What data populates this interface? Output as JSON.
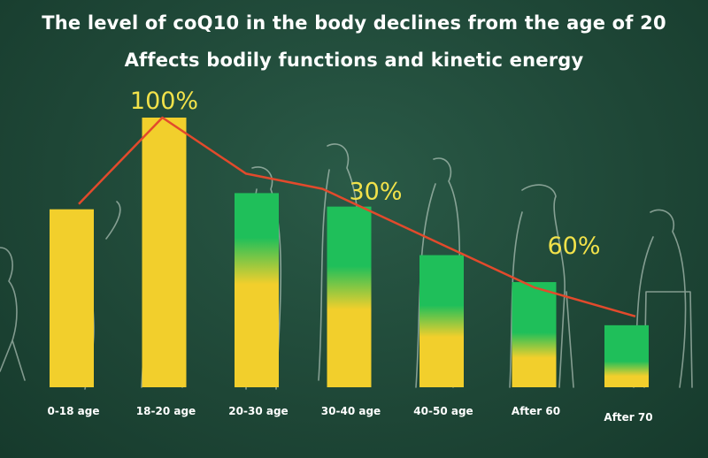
{
  "header": {
    "title_line1": "The level of coQ10 in the body declines from the age of 20",
    "title_line2": "Affects bodily functions and kinetic energy"
  },
  "colors": {
    "background": "#1f4a3a",
    "bar_yellow": "#f2cf2c",
    "bar_green": "#1fbf5a",
    "trend_line": "#e24a2c",
    "label_yellow": "#f2e24a"
  },
  "chart_data": {
    "type": "bar",
    "title": "The level of coQ10 in the body declines from the age of 20",
    "subtitle": "Affects bodily functions and kinetic energy",
    "xlabel": "",
    "ylabel": "",
    "ylim": [
      0,
      100
    ],
    "grid": false,
    "legend": "none",
    "categories": [
      "0-18 age",
      "18-20 age",
      "20-30 age",
      "30-40 age",
      "40-50 age",
      "After 60",
      "After 70"
    ],
    "values": [
      66,
      100,
      72,
      67,
      49,
      39,
      23
    ],
    "green_fraction": [
      0,
      0,
      0.35,
      0.45,
      0.5,
      0.6,
      0.7
    ],
    "annotations": [
      {
        "category": "18-20 age",
        "text": "100%"
      },
      {
        "category": "30-40 age",
        "text": "30%"
      },
      {
        "category": "After 60",
        "text": "60%"
      }
    ],
    "trend_line": true
  }
}
